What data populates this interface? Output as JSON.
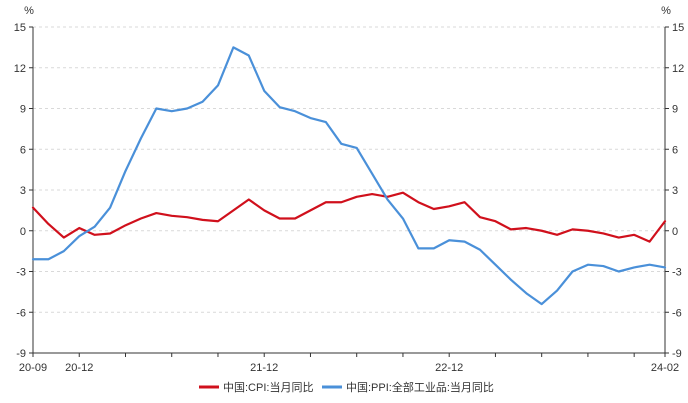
{
  "chart_data": {
    "type": "line",
    "x_start": "2020-09",
    "x_end": "2024-02",
    "x_tick_labels": [
      "20-09",
      "20-12",
      "21-12",
      "22-12",
      "24-02"
    ],
    "left_unit": "%",
    "right_unit": "%",
    "y_ticks": [
      "15",
      "12",
      "9",
      "6",
      "3",
      "0",
      "-3",
      "-6",
      "-9"
    ],
    "ylim": [
      -9,
      15
    ],
    "grid": true,
    "legend_position": "bottom",
    "series": [
      {
        "name": "中国:CPI:当月同比",
        "color": "#d0101c",
        "values": [
          1.7,
          0.5,
          -0.5,
          0.2,
          -0.3,
          -0.2,
          0.4,
          0.9,
          1.3,
          1.1,
          1.0,
          0.8,
          0.7,
          1.5,
          2.3,
          1.5,
          0.9,
          0.9,
          1.5,
          2.1,
          2.1,
          2.5,
          2.7,
          2.5,
          2.8,
          2.1,
          1.6,
          1.8,
          2.1,
          1.0,
          0.7,
          0.1,
          0.2,
          0.0,
          -0.3,
          0.1,
          0.0,
          -0.2,
          -0.5,
          -0.3,
          -0.8,
          0.7
        ]
      },
      {
        "name": "中国:PPI:全部工业品:当月同比",
        "color": "#4a90d9",
        "values": [
          -2.1,
          -2.1,
          -1.5,
          -0.4,
          0.3,
          1.7,
          4.4,
          6.8,
          9.0,
          8.8,
          9.0,
          9.5,
          10.7,
          13.5,
          12.9,
          10.3,
          9.1,
          8.8,
          8.3,
          8.0,
          6.4,
          6.1,
          4.2,
          2.3,
          0.9,
          -1.3,
          -1.3,
          -0.7,
          -0.8,
          -1.4,
          -2.5,
          -3.6,
          -4.6,
          -5.4,
          -4.4,
          -3.0,
          -2.5,
          -2.6,
          -3.0,
          -2.7,
          -2.5,
          -2.7
        ]
      }
    ]
  }
}
